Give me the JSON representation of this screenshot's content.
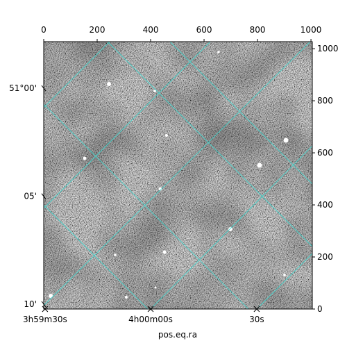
{
  "chart_data": {
    "type": "image",
    "xlabel": "pos.eq.ra",
    "xlim": [
      0,
      1005
    ],
    "ylim": [
      0,
      1027
    ],
    "xticks": [
      0,
      200,
      400,
      600,
      800,
      1000
    ],
    "yticks": [
      0,
      200,
      400,
      600,
      800,
      1000
    ],
    "ra_ticks": [
      {
        "value": 5,
        "label": "3h59m30s"
      },
      {
        "value": 400,
        "label": "4h00m00s"
      },
      {
        "value": 797,
        "label": "30s"
      }
    ],
    "dec_ticks": [
      {
        "value": 848,
        "label": "51°00'"
      },
      {
        "value": 433,
        "label": "05'"
      },
      {
        "value": 19,
        "label": "10'"
      }
    ],
    "grid_color": "#40d8d0"
  }
}
